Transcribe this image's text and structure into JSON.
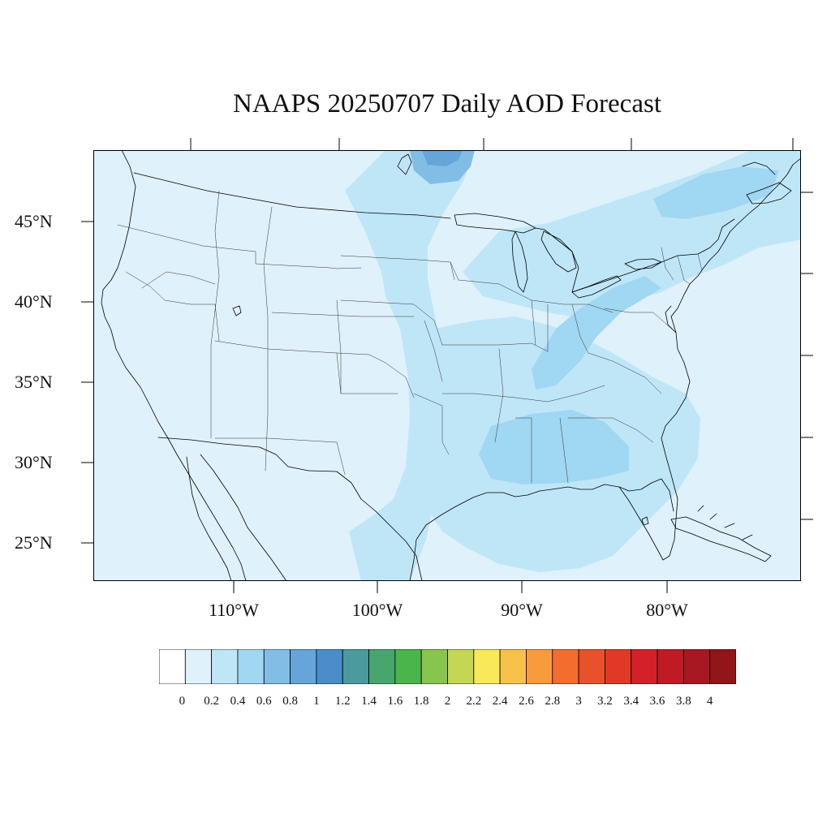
{
  "title": "NAAPS 20250707 Daily AOD Forecast",
  "map": {
    "projection": "cylindrical-equidistant",
    "lon_range": [
      -119.5,
      -70.5
    ],
    "lat_range": [
      22.7,
      49.3
    ],
    "land_color": "#dff1fa",
    "outline_color": "#000000"
  },
  "lat_ticks": [
    {
      "value": 45,
      "label": "45°N"
    },
    {
      "value": 40,
      "label": "40°N"
    },
    {
      "value": 35,
      "label": "35°N"
    },
    {
      "value": 30,
      "label": "30°N"
    },
    {
      "value": 25,
      "label": "25°N"
    }
  ],
  "lon_ticks": [
    {
      "value": -110,
      "label": "110°W"
    },
    {
      "value": -100,
      "label": "100°W"
    },
    {
      "value": -90,
      "label": "90°W"
    },
    {
      "value": -80,
      "label": "80°W"
    }
  ],
  "colorbar": {
    "colors": [
      "#ffffff",
      "#dff1fa",
      "#bfe6f7",
      "#a0d7f2",
      "#82bde6",
      "#66a5da",
      "#4a8dcb",
      "#4a9a9e",
      "#46a66e",
      "#4ab54a",
      "#87c54c",
      "#c5d655",
      "#f8e85a",
      "#f8c24a",
      "#f89b3d",
      "#f26d2e",
      "#e9512a",
      "#e03a27",
      "#d42029",
      "#c01a25",
      "#a81822",
      "#911519"
    ],
    "labels": [
      "0",
      "0.2",
      "0.4",
      "0.6",
      "0.8",
      "1",
      "1.2",
      "1.4",
      "1.6",
      "1.8",
      "2",
      "2.2",
      "2.4",
      "2.6",
      "2.8",
      "3",
      "3.2",
      "3.4",
      "3.6",
      "3.8",
      "4"
    ]
  },
  "aod_regions": [
    {
      "name": "northern-plains-plume",
      "level": 0.2,
      "color": "#bfe6f7"
    },
    {
      "name": "great-lakes-northeast-plume",
      "level": 0.2,
      "color": "#bfe6f7"
    },
    {
      "name": "southeast-gulf-region",
      "level": 0.2,
      "color": "#bfe6f7"
    },
    {
      "name": "southeast-core",
      "level": 0.4,
      "color": "#a0d7f2"
    },
    {
      "name": "ohio-valley-core",
      "level": 0.4,
      "color": "#a0d7f2"
    },
    {
      "name": "quebec-core",
      "level": 0.4,
      "color": "#a0d7f2"
    },
    {
      "name": "ontario-hotspot",
      "level": 0.6,
      "color": "#82bde6"
    },
    {
      "name": "ontario-peak",
      "level": 0.8,
      "color": "#66a5da"
    }
  ]
}
